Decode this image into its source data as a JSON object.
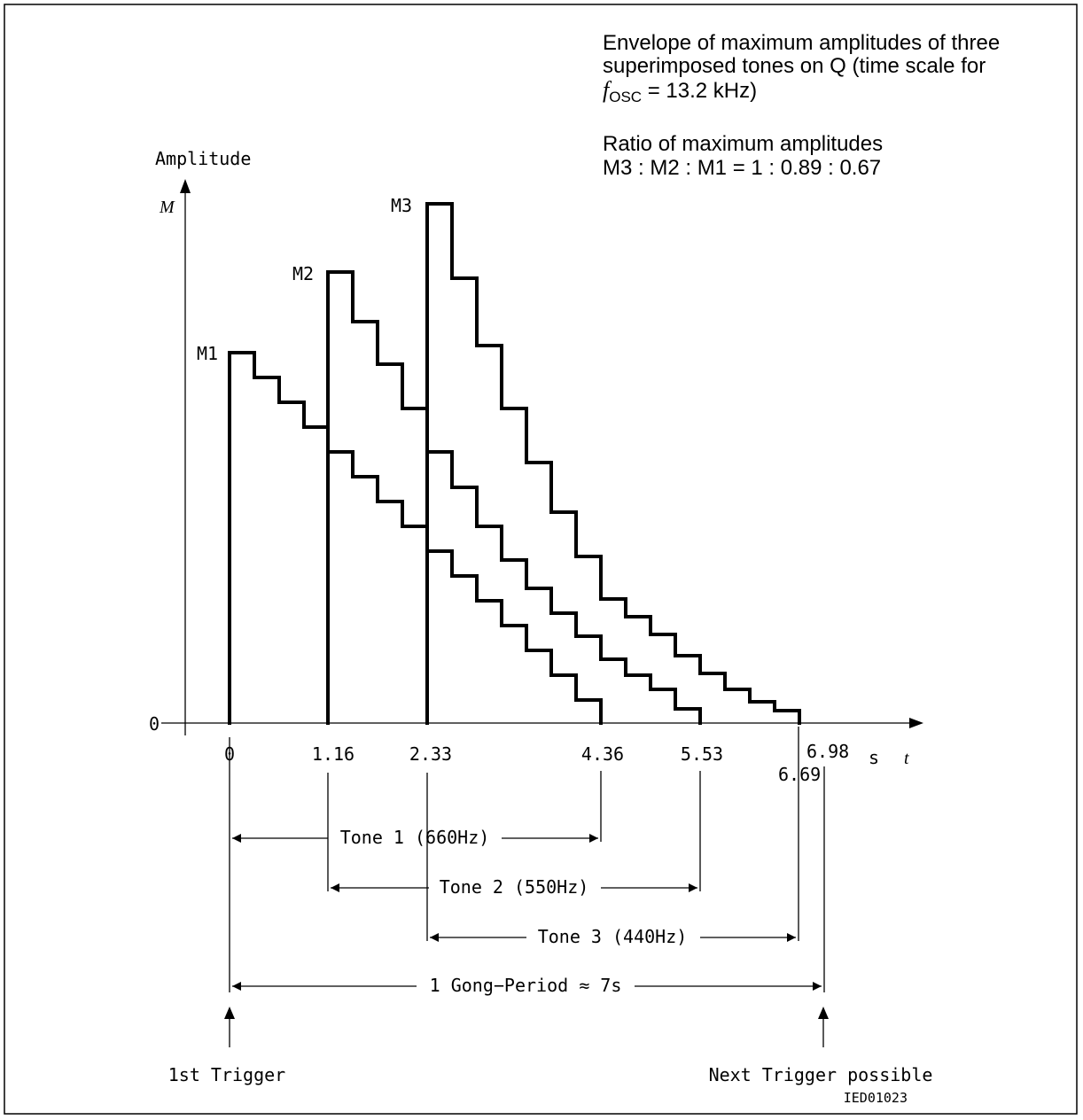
{
  "notes": {
    "line1": "Envelope of maximum amplitudes of three",
    "line2": "superimposed tones on Q (time scale for",
    "line3_sym": "f",
    "line3_sub": "OSC",
    "line3_rest": " = 13.2 kHz)",
    "ratio_line1": "Ratio of maximum amplitudes",
    "ratio_line2": "M3 : M2 : M1 = 1 : 0.89 : 0.67"
  },
  "axes": {
    "y_title": "Amplitude",
    "y_symbol": "M",
    "y_zero": "0",
    "x_unit": "s",
    "x_symbol": "t",
    "x_ticks": [
      "0",
      "1.16",
      "2.33",
      "4.36",
      "5.53",
      "6.98",
      "6.69"
    ]
  },
  "peaks": {
    "m1": "M1",
    "m2": "M2",
    "m3": "M3"
  },
  "spans": {
    "tone1": "Tone 1 (660Hz)",
    "tone2": "Tone 2 (550Hz)",
    "tone3": "Tone 3 (440Hz)",
    "gong": "1 Gong−Period ≈ 7s"
  },
  "triggers": {
    "first": "1st Trigger",
    "next": "Next Trigger possible"
  },
  "figure_id": "IED01023",
  "tones": [
    {
      "label": "Tone 1 (660Hz)",
      "start_s": 0,
      "end_s": 4.36,
      "peak_rel": 0.67
    },
    {
      "label": "Tone 2 (550Hz)",
      "start_s": 1.16,
      "end_s": 5.53,
      "peak_rel": 0.89
    },
    {
      "label": "Tone 3 (440Hz)",
      "start_s": 2.33,
      "end_s": 6.69,
      "peak_rel": 1.0
    }
  ]
}
